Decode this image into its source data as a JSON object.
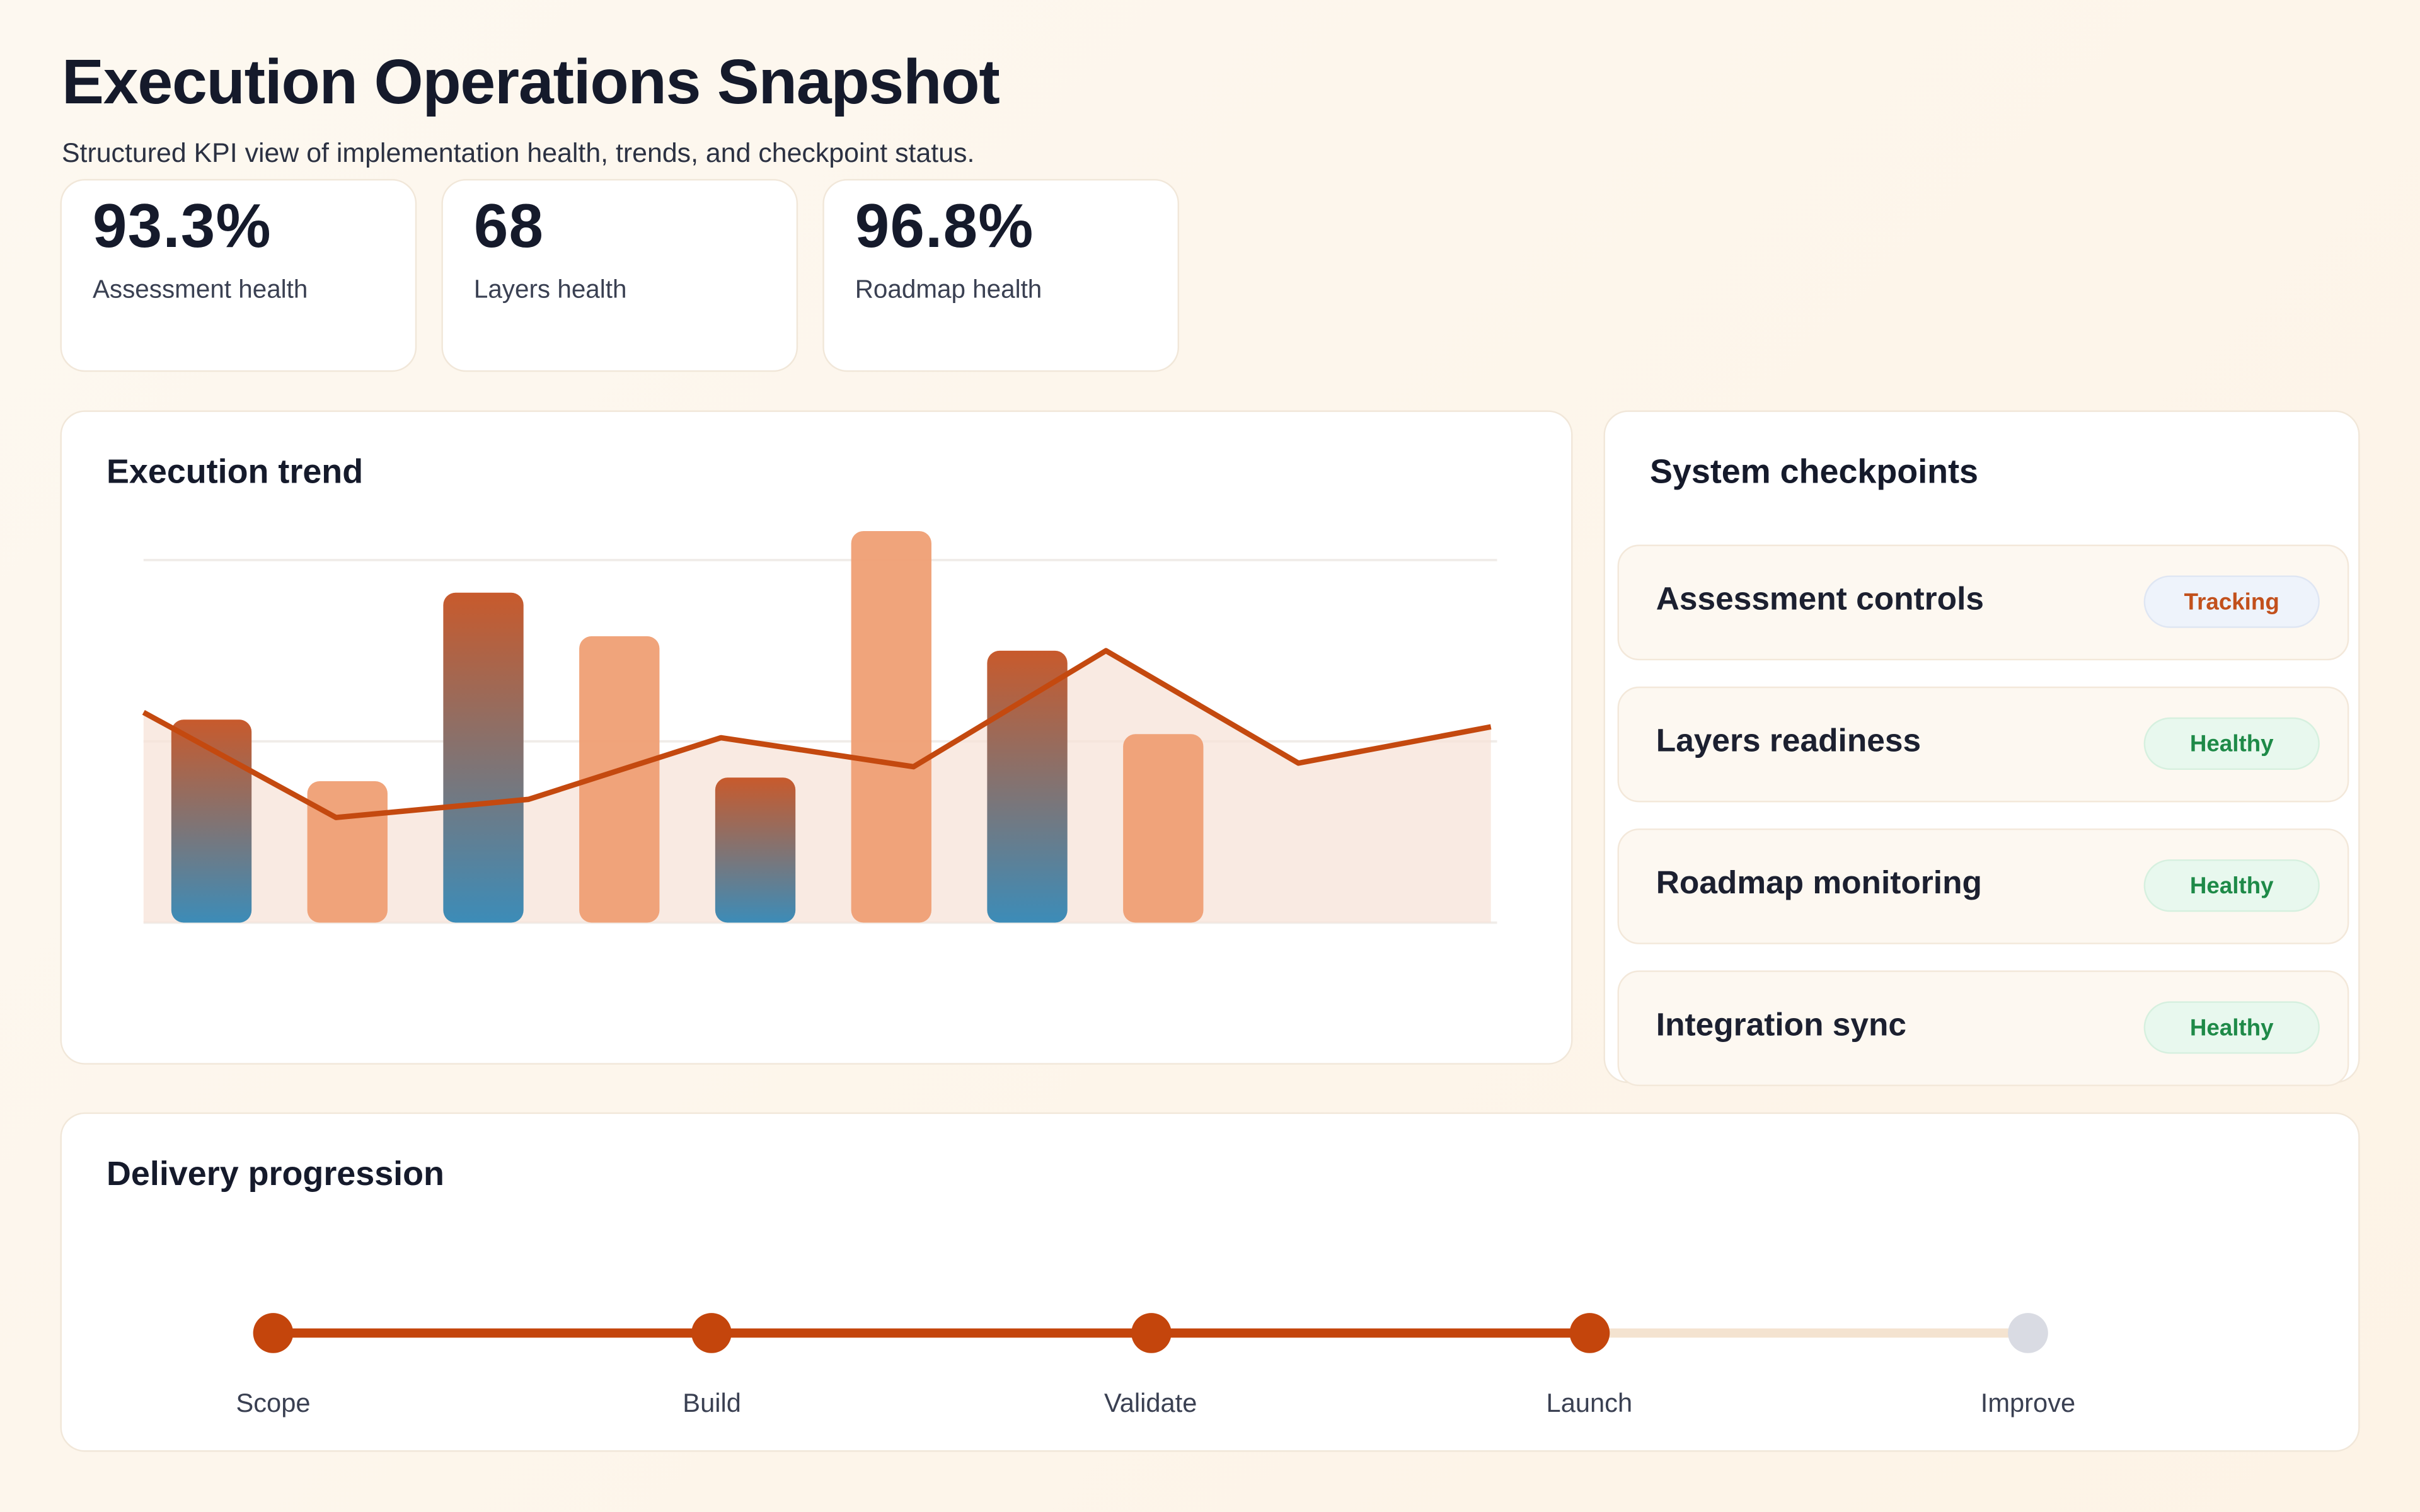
{
  "header": {
    "title": "Execution Operations Snapshot",
    "subtitle": "Structured KPI view of implementation health, trends, and checkpoint status."
  },
  "kpis": [
    {
      "value": "93.3%",
      "label": "Assessment health"
    },
    {
      "value": "68",
      "label": "Layers health"
    },
    {
      "value": "96.8%",
      "label": "Roadmap health"
    }
  ],
  "trend": {
    "title": "Execution trend"
  },
  "chart_data": {
    "type": "bar+line",
    "ylim": [
      0,
      100
    ],
    "grid": true,
    "bars": [
      56,
      39,
      91,
      79,
      40,
      108,
      75,
      52
    ],
    "bar_styles": [
      "gradient",
      "light",
      "gradient",
      "light",
      "gradient",
      "light",
      "gradient",
      "light"
    ],
    "line": [
      58,
      29,
      34,
      51,
      43,
      75,
      44,
      54
    ],
    "colors": {
      "gradient_top": "#c85a2c",
      "gradient_bottom": "#3c8cb8",
      "light_bar": "#ef9f74",
      "line": "#c4490f",
      "area": "#f7e3d8"
    }
  },
  "checkpoints": {
    "title": "System checkpoints",
    "items": [
      {
        "name": "Assessment controls",
        "status": "Tracking",
        "kind": "tracking"
      },
      {
        "name": "Layers readiness",
        "status": "Healthy",
        "kind": "healthy"
      },
      {
        "name": "Roadmap monitoring",
        "status": "Healthy",
        "kind": "healthy"
      },
      {
        "name": "Integration sync",
        "status": "Healthy",
        "kind": "healthy"
      }
    ]
  },
  "delivery": {
    "title": "Delivery progression",
    "completed_through": 3,
    "steps": [
      "Scope",
      "Build",
      "Validate",
      "Launch",
      "Improve"
    ],
    "colors": {
      "done": "#c4450c",
      "pending": "#d9dbe3",
      "track_pending": "#f4e3d0"
    }
  }
}
